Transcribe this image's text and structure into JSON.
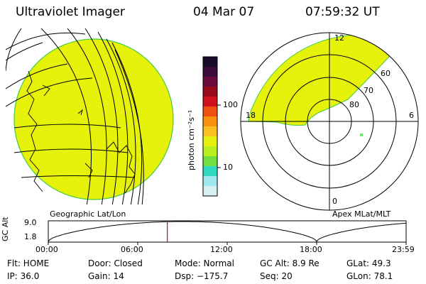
{
  "header": {
    "title": "Ultraviolet Imager",
    "date": "04 Mar 07",
    "time": "07:59:32 UT"
  },
  "colorbar": {
    "label": "photon cm⁻²s⁻¹",
    "ticks": [
      "100",
      "10"
    ],
    "colors": [
      "#1a0a2a",
      "#3a0a3a",
      "#6a0a3a",
      "#9a0a1a",
      "#d0101a",
      "#f05010",
      "#f89010",
      "#f8c020",
      "#e8f010",
      "#b8f020",
      "#70e040",
      "#30d8c0",
      "#a0e8f0",
      "#d8f0f0"
    ]
  },
  "geo_panel": {
    "label": "Geographic Lat/Lon",
    "fill_color": "#e6f20a"
  },
  "polar_panel": {
    "label": "Apex MLat/MLT",
    "mlt_labels": [
      "12",
      "18",
      "6",
      "0"
    ],
    "lat_labels": [
      "60",
      "70",
      "80"
    ],
    "fill_color": "#e6f20a"
  },
  "altitude_plot": {
    "ylabel": "GC Alt",
    "ytick_top": "9.0",
    "ytick_bottom": "1.8",
    "xticks": [
      "00:00",
      "06:00",
      "12:00",
      "18:00",
      "23:59"
    ],
    "marker_time": "07:59"
  },
  "info": {
    "row1": [
      "Flt: HOME",
      "Door: Closed",
      "Mode: Normal",
      "GC Alt: 8.9 Re",
      "GLat:  49.3"
    ],
    "row2": [
      "IP: 36.0",
      "Gain: 14",
      "Dsp: −175.7",
      "Seq: 20",
      "GLon:  78.1"
    ]
  }
}
